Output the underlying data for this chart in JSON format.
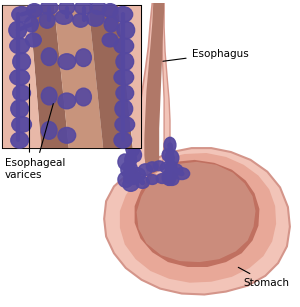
{
  "background_color": "#ffffff",
  "fig_width": 3.0,
  "fig_height": 3.07,
  "dpi": 100,
  "labels": {
    "esophagus": "Esophagus",
    "stomach": "Stomach",
    "varices": "Esophageal\nvarices"
  },
  "colors": {
    "stomach_outer_edge": "#D4958A",
    "stomach_wall_light": "#F2C4B8",
    "stomach_wall_mid": "#E8A898",
    "stomach_inner_dark": "#C07060",
    "stomach_mucosa": "#D4A090",
    "esophagus_outer": "#D4958A",
    "esophagus_inner": "#A06050",
    "esophagus_muscle": "#B07868",
    "varices_purple": "#5548A0",
    "varices_mid": "#6655B0",
    "varices_light": "#8878C8",
    "box_border": "#000000",
    "text_color": "#000000",
    "background": "#ffffff",
    "inset_bg": "#ffffff",
    "inset_tissue_brown": "#9A6858",
    "inset_tissue_light": "#C8947C",
    "inset_tissue_pink": "#E8B8A8",
    "inset_purple": "#5548A0"
  }
}
